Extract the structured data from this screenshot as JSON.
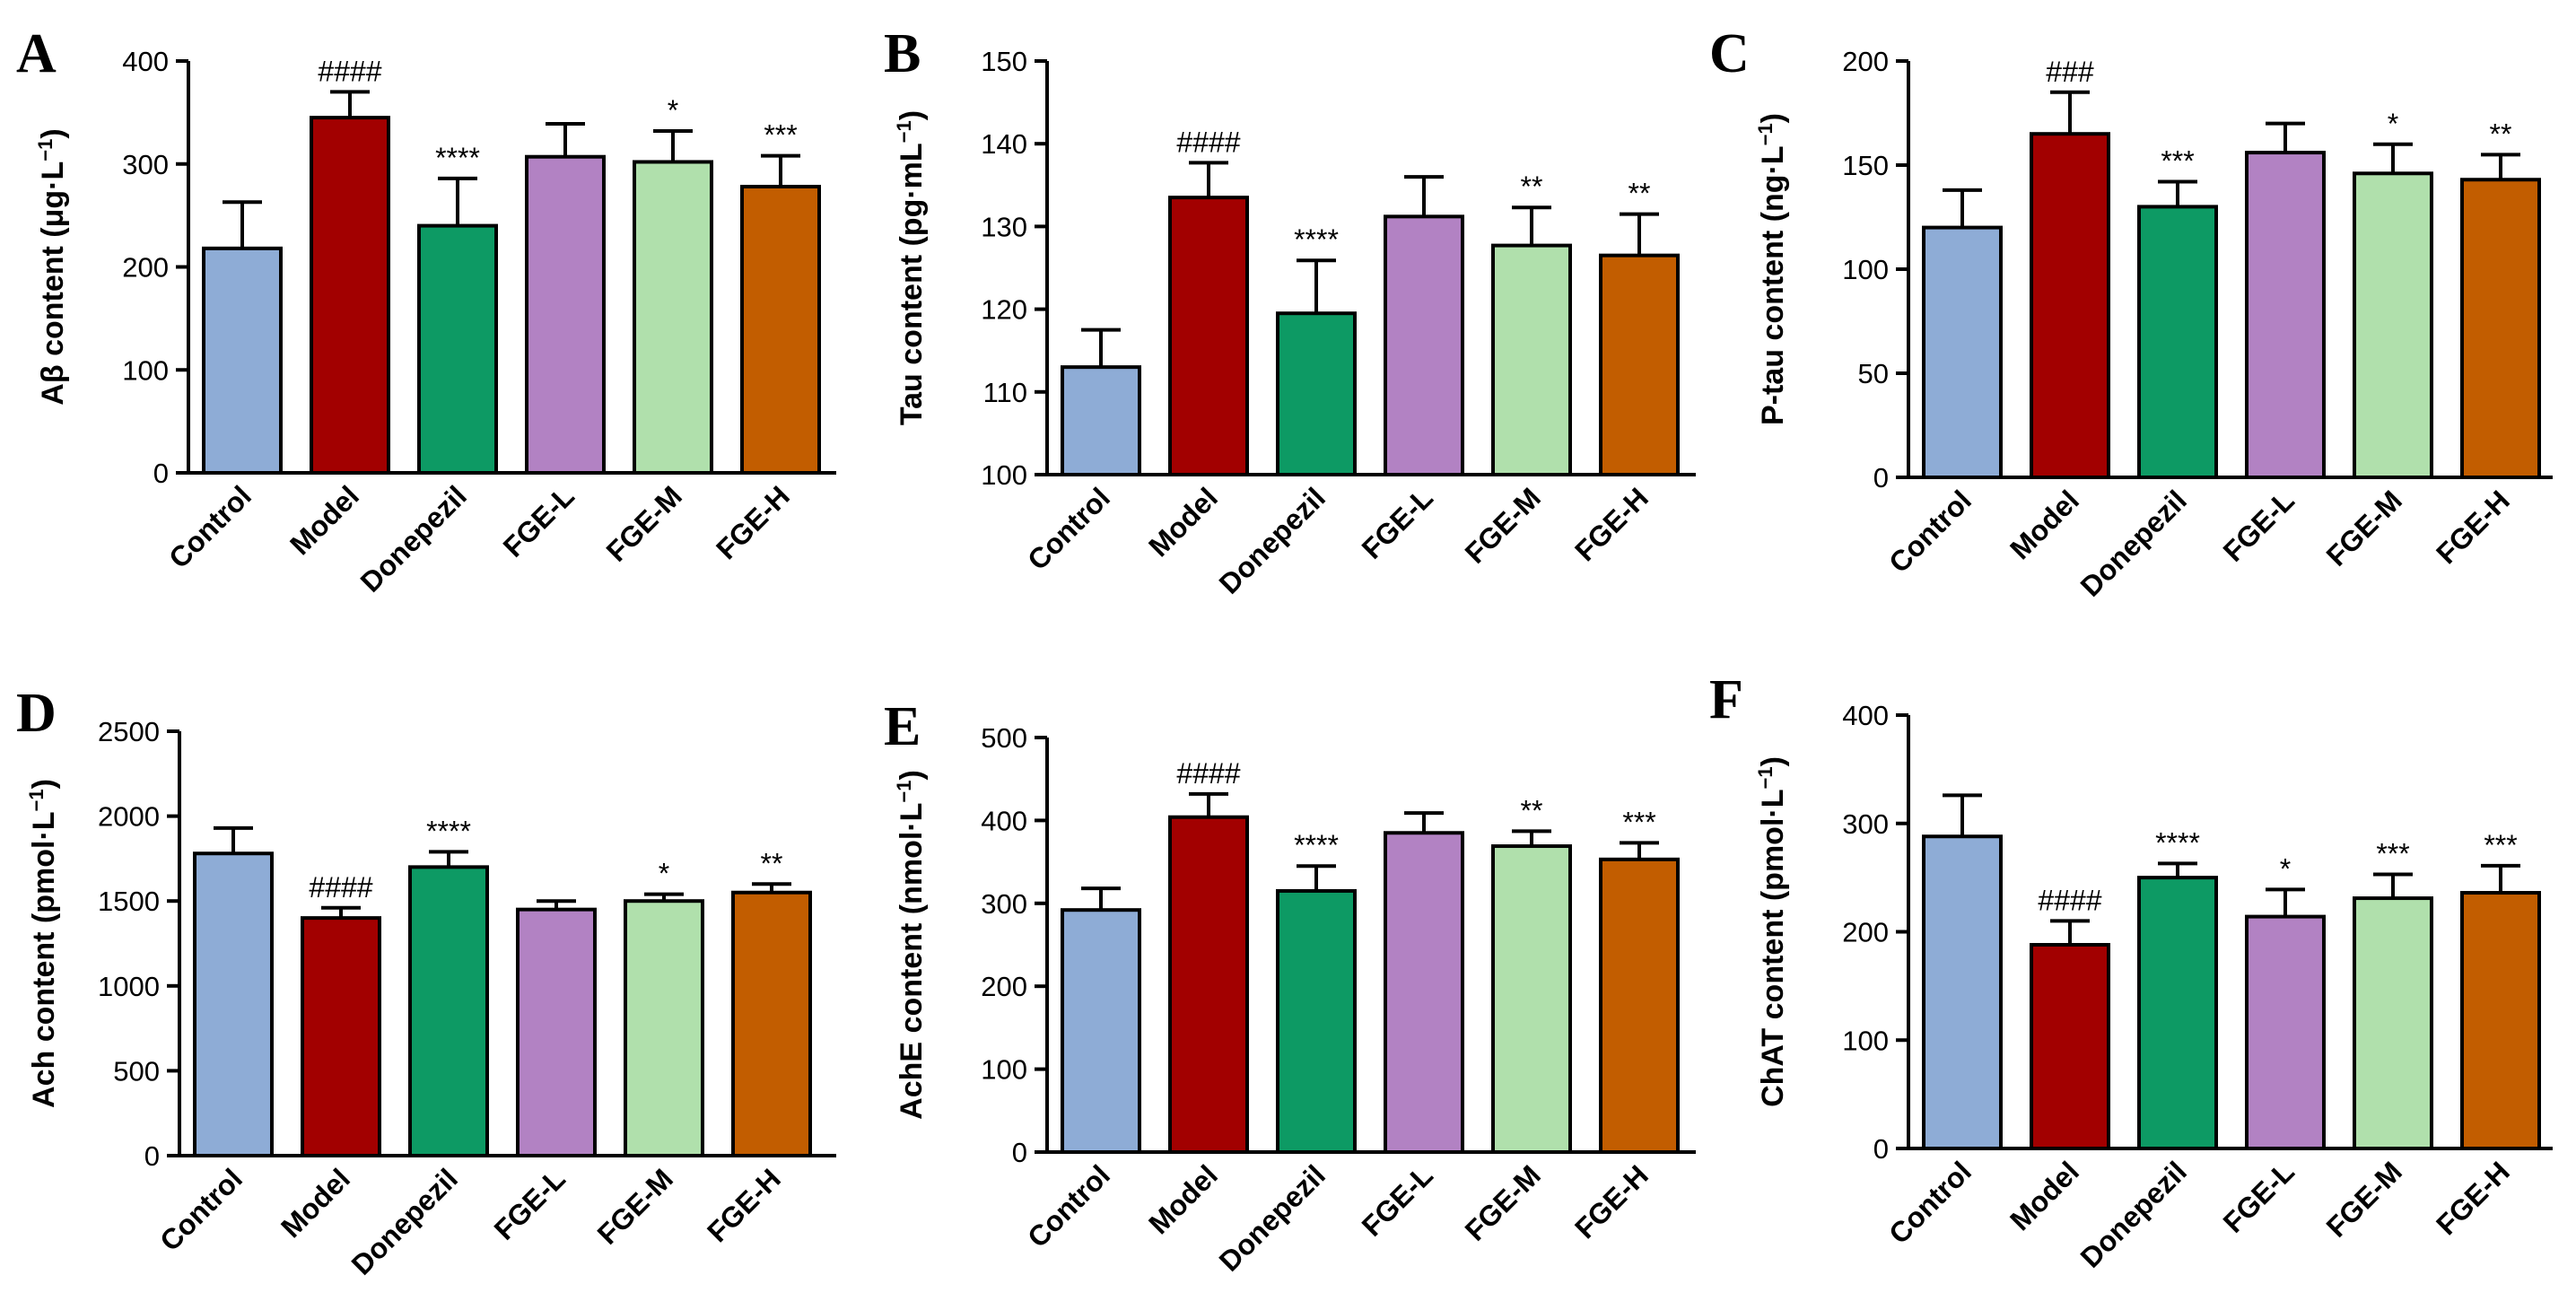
{
  "figure": {
    "bar_colors": {
      "Control": "#8eacd6",
      "Model": "#a20000",
      "Donepezil": "#0d9a64",
      "FGE-L": "#b282c3",
      "FGE-M": "#b0e0ac",
      "FGE-H": "#c25d00"
    },
    "stroke_color": "#000000"
  },
  "chart_data": [
    {
      "panel": "A",
      "type": "bar",
      "ylabel": "Aβ content (μg·L",
      "ylabel_sup": "−1",
      "ylabel_end": ")",
      "ylim": [
        0,
        400
      ],
      "yticks": [
        0,
        100,
        200,
        300,
        400
      ],
      "categories": [
        "Control",
        "Model",
        "Donepezil",
        "FGE-L",
        "FGE-M",
        "FGE-H"
      ],
      "values": [
        218,
        345,
        240,
        307,
        302,
        278
      ],
      "errors": [
        45,
        25,
        46,
        32,
        30,
        30
      ],
      "significance": [
        "",
        "####",
        "****",
        "",
        "*",
        "***"
      ]
    },
    {
      "panel": "B",
      "type": "bar",
      "ylabel": "Tau content (pg·mL",
      "ylabel_sup": "−1",
      "ylabel_end": ")",
      "ylim": [
        100,
        150
      ],
      "yticks": [
        100,
        110,
        120,
        130,
        140,
        150
      ],
      "categories": [
        "Control",
        "Model",
        "Donepezil",
        "FGE-L",
        "FGE-M",
        "FGE-H"
      ],
      "values": [
        113,
        133.5,
        119.5,
        131.2,
        127.7,
        126.5
      ],
      "errors": [
        4.5,
        4.2,
        6.4,
        4.8,
        4.6,
        5
      ],
      "significance": [
        "",
        "####",
        "****",
        "",
        "**",
        "**"
      ]
    },
    {
      "panel": "C",
      "type": "bar",
      "ylabel": "P-tau content (ng·L",
      "ylabel_sup": "−1",
      "ylabel_end": ")",
      "ylim": [
        0,
        200
      ],
      "yticks": [
        0,
        50,
        100,
        150,
        200
      ],
      "categories": [
        "Control",
        "Model",
        "Donepezil",
        "FGE-L",
        "FGE-M",
        "FGE-H"
      ],
      "values": [
        120,
        165,
        130,
        156,
        146,
        143
      ],
      "errors": [
        18,
        20,
        12,
        14,
        14,
        12
      ],
      "significance": [
        "",
        "###",
        "***",
        "",
        "*",
        "**"
      ]
    },
    {
      "panel": "D",
      "type": "bar",
      "ylabel": "Ach content (pmol·L",
      "ylabel_sup": "−1",
      "ylabel_end": ")",
      "ylim": [
        0,
        2500
      ],
      "yticks": [
        0,
        500,
        1000,
        1500,
        2000,
        2500
      ],
      "categories": [
        "Control",
        "Model",
        "Donepezil",
        "FGE-L",
        "FGE-M",
        "FGE-H"
      ],
      "values": [
        1780,
        1400,
        1700,
        1450,
        1500,
        1550
      ],
      "errors": [
        150,
        60,
        90,
        50,
        40,
        50
      ],
      "significance": [
        "",
        "####",
        "****",
        "",
        "*",
        "**"
      ]
    },
    {
      "panel": "E",
      "type": "bar",
      "ylabel": "AchE content (nmol·L",
      "ylabel_sup": "−1",
      "ylabel_end": ")",
      "ylim": [
        0,
        500
      ],
      "yticks": [
        0,
        100,
        200,
        300,
        400,
        500
      ],
      "categories": [
        "Control",
        "Model",
        "Donepezil",
        "FGE-L",
        "FGE-M",
        "FGE-H"
      ],
      "values": [
        292,
        404,
        315,
        385,
        369,
        353
      ],
      "errors": [
        26,
        28,
        30,
        24,
        18,
        20
      ],
      "significance": [
        "",
        "####",
        "****",
        "",
        "**",
        "***"
      ]
    },
    {
      "panel": "F",
      "type": "bar",
      "ylabel": "ChAT content (pmol·L",
      "ylabel_sup": "−1",
      "ylabel_end": ")",
      "ylim": [
        0,
        400
      ],
      "yticks": [
        0,
        100,
        200,
        300,
        400
      ],
      "categories": [
        "Control",
        "Model",
        "Donepezil",
        "FGE-L",
        "FGE-M",
        "FGE-H"
      ],
      "values": [
        288,
        188,
        250,
        214,
        231,
        236
      ],
      "errors": [
        38,
        22,
        13,
        25,
        22,
        25
      ],
      "significance": [
        "",
        "####",
        "****",
        "*",
        "***",
        "***"
      ]
    }
  ]
}
